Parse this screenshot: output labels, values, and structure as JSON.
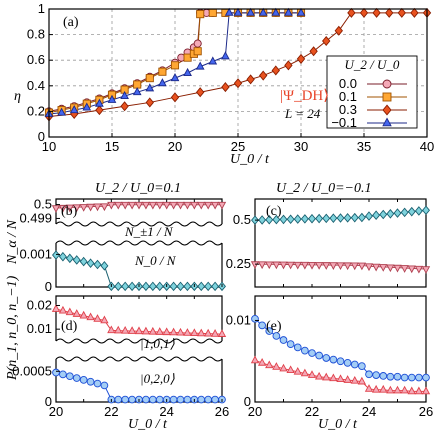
{
  "chart_data": [
    {
      "panel": "(a)",
      "type": "line",
      "xlabel": "U_0 / t",
      "ylabel": "η",
      "xlim": [
        10,
        40
      ],
      "ylim": [
        0,
        1
      ],
      "xticks": [
        10,
        15,
        20,
        25,
        30,
        35,
        40
      ],
      "yticks": [
        0,
        0.2,
        0.4,
        0.6,
        0.8,
        1
      ],
      "grid": true,
      "legend_title": "U_2 / U_0",
      "annotation_state": "|Ψ_DH⟩",
      "annotation_L": "L = 24",
      "series": [
        {
          "name": "0.0",
          "color": "#f4a9b7",
          "edge": "#7a1c2a",
          "marker": "circle",
          "x": [
            10,
            11,
            12,
            13,
            14,
            15,
            16,
            17,
            18,
            19,
            20,
            20.5,
            21,
            21.5,
            21.8,
            22,
            22.5,
            23,
            24,
            25,
            26,
            27,
            28,
            29,
            30
          ],
          "y": [
            0.2,
            0.22,
            0.24,
            0.27,
            0.3,
            0.34,
            0.38,
            0.42,
            0.47,
            0.52,
            0.58,
            0.62,
            0.66,
            0.7,
            0.73,
            0.97,
            0.97,
            0.97,
            0.97,
            0.97,
            0.97,
            0.97,
            0.97,
            0.97,
            0.97
          ]
        },
        {
          "name": "0.1",
          "color": "#ffa733",
          "edge": "#a05300",
          "marker": "square",
          "x": [
            10,
            11,
            12,
            13,
            14,
            15,
            16,
            17,
            18,
            19,
            20,
            21,
            21.5,
            21.8,
            22,
            23,
            24,
            25,
            26,
            27,
            28,
            29,
            30
          ],
          "y": [
            0.19,
            0.21,
            0.23,
            0.26,
            0.29,
            0.33,
            0.37,
            0.41,
            0.46,
            0.51,
            0.56,
            0.62,
            0.65,
            0.67,
            0.96,
            0.97,
            0.97,
            0.97,
            0.97,
            0.97,
            0.97,
            0.97,
            0.97
          ]
        },
        {
          "name": "0.3",
          "color": "#e8521f",
          "edge": "#8a1e00",
          "marker": "diamond",
          "x": [
            10,
            12,
            14,
            16,
            18,
            20,
            22,
            24,
            25,
            26,
            27,
            28,
            29,
            30,
            31,
            32,
            33,
            34,
            35,
            36,
            37,
            38,
            39,
            40
          ],
          "y": [
            0.16,
            0.18,
            0.21,
            0.24,
            0.27,
            0.31,
            0.35,
            0.39,
            0.42,
            0.45,
            0.48,
            0.52,
            0.56,
            0.61,
            0.67,
            0.75,
            0.83,
            0.97,
            0.97,
            0.97,
            0.97,
            0.97,
            0.97,
            0.97
          ]
        },
        {
          "name": "−0.1",
          "color": "#4466ee",
          "edge": "#1c2a8a",
          "marker": "triangle",
          "x": [
            10,
            11,
            12,
            13,
            14,
            15,
            16,
            17,
            18,
            19,
            20,
            21,
            22,
            23,
            24,
            24.3,
            25,
            26,
            27,
            28,
            29,
            30
          ],
          "y": [
            0.18,
            0.19,
            0.21,
            0.23,
            0.26,
            0.29,
            0.32,
            0.35,
            0.38,
            0.42,
            0.46,
            0.5,
            0.55,
            0.59,
            0.63,
            0.97,
            0.97,
            0.97,
            0.97,
            0.97,
            0.97,
            0.97
          ]
        }
      ]
    },
    {
      "panel": "(b)",
      "type": "line",
      "subtitle": "U_2 / U_0=0.1",
      "ylabel": "N_α / N",
      "xlim": [
        20,
        26
      ],
      "upper_ylim": [
        0.4986,
        0.5004
      ],
      "upper_yticks": [
        0.499,
        0.5
      ],
      "lower_ylim": [
        0,
        0.00135
      ],
      "lower_yticks": [
        0,
        0.001
      ],
      "series": [
        {
          "name": "N_±1 / N",
          "color": "#f4a9b7",
          "edge": "#b04050",
          "marker": "triangle-down",
          "x": [
            20,
            20.25,
            20.5,
            20.75,
            21,
            21.25,
            21.5,
            21.75,
            22,
            22.25,
            22.5,
            22.75,
            23,
            23.25,
            23.5,
            23.75,
            24,
            24.25,
            24.5,
            24.75,
            25,
            25.25,
            25.5,
            25.75,
            26
          ],
          "y": [
            0.49975,
            0.49977,
            0.49979,
            0.49981,
            0.49983,
            0.49985,
            0.49987,
            0.49988,
            0.49999,
            0.49999,
            0.49999,
            0.49999,
            0.49999,
            0.49999,
            0.49999,
            0.49999,
            0.49999,
            0.49999,
            0.49999,
            0.49999,
            0.49999,
            0.49999,
            0.49999,
            0.49999,
            0.49999
          ]
        },
        {
          "name": "N_0 / N",
          "color": "#7fd3dd",
          "edge": "#1a6070",
          "marker": "diamond",
          "x": [
            20,
            20.25,
            20.5,
            20.75,
            21,
            21.25,
            21.5,
            21.75,
            22,
            22.25,
            22.5,
            22.75,
            23,
            23.25,
            23.5,
            23.75,
            24,
            24.25,
            24.5,
            24.75,
            25,
            25.25,
            25.5,
            25.75,
            26
          ],
          "y": [
            0.00098,
            0.00093,
            0.00088,
            0.00083,
            0.00078,
            0.00073,
            0.00069,
            0.00065,
            2e-05,
            2e-05,
            2e-05,
            2e-05,
            2e-05,
            2e-05,
            2e-05,
            2e-05,
            2e-05,
            2e-05,
            2e-05,
            2e-05,
            2e-05,
            2e-05,
            2e-05,
            2e-05,
            2e-05
          ]
        }
      ]
    },
    {
      "panel": "(c)",
      "type": "line",
      "subtitle": "U_2 / U_0=−0.1",
      "xlim": [
        20,
        26
      ],
      "ylim": [
        0.12,
        0.62
      ],
      "yticks": [
        0.25,
        0.5
      ],
      "series": [
        {
          "name": "N_0 / N",
          "color": "#7fd3dd",
          "edge": "#1a6070",
          "marker": "diamond",
          "x": [
            20,
            20.25,
            20.5,
            20.75,
            21,
            21.25,
            21.5,
            21.75,
            22,
            22.25,
            22.5,
            22.75,
            23,
            23.25,
            23.5,
            23.75,
            24,
            24.25,
            24.5,
            24.75,
            25,
            25.25,
            25.5,
            25.75,
            26
          ],
          "y": [
            0.5,
            0.501,
            0.502,
            0.503,
            0.504,
            0.505,
            0.506,
            0.507,
            0.508,
            0.509,
            0.51,
            0.511,
            0.512,
            0.513,
            0.514,
            0.515,
            0.523,
            0.528,
            0.532,
            0.536,
            0.54,
            0.544,
            0.548,
            0.552,
            0.556
          ]
        },
        {
          "name": "N_±1 / N",
          "color": "#f4a9b7",
          "edge": "#b04050",
          "marker": "triangle-down",
          "x": [
            20,
            20.25,
            20.5,
            20.75,
            21,
            21.25,
            21.5,
            21.75,
            22,
            22.25,
            22.5,
            22.75,
            23,
            23.25,
            23.5,
            23.75,
            24,
            24.25,
            24.5,
            24.75,
            25,
            25.25,
            25.5,
            25.75,
            26
          ],
          "y": [
            0.25,
            0.2495,
            0.249,
            0.2485,
            0.248,
            0.2475,
            0.247,
            0.2465,
            0.246,
            0.2455,
            0.245,
            0.2445,
            0.244,
            0.2435,
            0.243,
            0.2425,
            0.238,
            0.236,
            0.234,
            0.232,
            0.23,
            0.228,
            0.226,
            0.224,
            0.222
          ]
        }
      ]
    },
    {
      "panel": "(d)",
      "type": "line",
      "ylabel": "P(n_1, n_0, n_−1)",
      "xlabel": "U_0 / t",
      "xlim": [
        20,
        26
      ],
      "xticks": [
        20,
        22,
        24,
        26
      ],
      "upper_ylim": [
        0.005,
        0.024
      ],
      "upper_yticks": [
        0.01,
        0.02
      ],
      "lower_ylim": [
        0,
        0.0007
      ],
      "lower_yticks": [
        0,
        0.0005
      ],
      "series": [
        {
          "name": "|1,0,1⟩",
          "color": "#f4a9b7",
          "edge": "#e0404a",
          "marker": "triangle",
          "x": [
            20,
            20.25,
            20.5,
            20.75,
            21,
            21.25,
            21.5,
            21.75,
            22,
            22.25,
            22.5,
            22.75,
            23,
            23.25,
            23.5,
            23.75,
            24,
            24.25,
            24.5,
            24.75,
            25,
            25.25,
            25.5,
            25.75,
            26
          ],
          "y": [
            0.0185,
            0.0178,
            0.0171,
            0.0164,
            0.0157,
            0.015,
            0.0143,
            0.0137,
            0.0095,
            0.0094,
            0.0093,
            0.0092,
            0.0091,
            0.009,
            0.0089,
            0.0088,
            0.0087,
            0.0086,
            0.0085,
            0.0084,
            0.0083,
            0.0082,
            0.0081,
            0.008,
            0.0079
          ]
        },
        {
          "name": "|0,2,0⟩",
          "color": "#a3cdf5",
          "edge": "#1d4fd6",
          "marker": "circle",
          "x": [
            20,
            20.25,
            20.5,
            20.75,
            21,
            21.25,
            21.5,
            21.75,
            22,
            22.25,
            22.5,
            22.75,
            23,
            23.25,
            23.5,
            23.75,
            24,
            24.25,
            24.5,
            24.75,
            25,
            25.25,
            25.5,
            25.75,
            26
          ],
          "y": [
            0.00048,
            0.00045,
            0.00042,
            0.00039,
            0.00036,
            0.00033,
            0.0003,
            0.00027,
            4e-05,
            4e-05,
            4e-05,
            4e-05,
            4e-05,
            4e-05,
            4e-05,
            4e-05,
            4e-05,
            4e-05,
            4e-05,
            4e-05,
            4e-05,
            4e-05,
            4e-05,
            4e-05,
            4e-05
          ]
        }
      ]
    },
    {
      "panel": "(e)",
      "type": "line",
      "xlabel": "U_0 / t",
      "xlim": [
        20,
        26
      ],
      "xticks": [
        20,
        22,
        24,
        26
      ],
      "ylim": [
        0,
        0.013
      ],
      "yticks": [
        0,
        0.01
      ],
      "series": [
        {
          "name": "|0,2,0⟩",
          "color": "#a3cdf5",
          "edge": "#1d4fd6",
          "marker": "circle",
          "x": [
            20,
            20.25,
            20.5,
            20.75,
            21,
            21.25,
            21.5,
            21.75,
            22,
            22.25,
            22.5,
            22.75,
            23,
            23.25,
            23.5,
            23.75,
            24,
            24.25,
            24.5,
            24.75,
            25,
            25.25,
            25.5,
            25.75,
            26
          ],
          "y": [
            0.0102,
            0.0094,
            0.0087,
            0.0081,
            0.0076,
            0.0071,
            0.0067,
            0.0063,
            0.006,
            0.0057,
            0.0054,
            0.0052,
            0.005,
            0.0048,
            0.0046,
            0.0044,
            0.0034,
            0.0033,
            0.0032,
            0.0031,
            0.0031,
            0.003,
            0.003,
            0.003,
            0.003
          ]
        },
        {
          "name": "|1,0,1⟩",
          "color": "#f4a9b7",
          "edge": "#e0404a",
          "marker": "triangle",
          "x": [
            20,
            20.25,
            20.5,
            20.75,
            21,
            21.25,
            21.5,
            21.75,
            22,
            22.25,
            22.5,
            22.75,
            23,
            23.25,
            23.5,
            23.75,
            24,
            24.25,
            24.5,
            24.75,
            25,
            25.25,
            25.5,
            25.75,
            26
          ],
          "y": [
            0.0051,
            0.0048,
            0.0045,
            0.0043,
            0.0041,
            0.0039,
            0.0037,
            0.0035,
            0.0033,
            0.0031,
            0.003,
            0.0029,
            0.0028,
            0.0027,
            0.0026,
            0.0025,
            0.0016,
            0.0015,
            0.0015,
            0.0014,
            0.0014,
            0.0014,
            0.0013,
            0.0013,
            0.0013
          ]
        }
      ]
    }
  ],
  "labels": {
    "panel_a": "(a)",
    "panel_b": "(b)",
    "panel_c": "(c)",
    "panel_d": "(d)",
    "panel_e": "(e)",
    "a_ylabel": "η",
    "a_xlabel": "U_0 / t",
    "legend_title": "U_2 / U_0",
    "legend_0": "0.0",
    "legend_1": "0.1",
    "legend_2": "0.3",
    "legend_3": "−0.1",
    "psi": "|Ψ_DH⟩",
    "L": "L = 24",
    "b_title": "U_2 / U_0=0.1",
    "c_title": "U_2 / U_0=−0.1",
    "b_ylabel": "N_α / N",
    "b_N1": "N_±1 / N",
    "b_N0": "N_0 / N",
    "d_ylabel": "P(n_1, n_0, n_−1)",
    "d_101": "|1,0,1⟩",
    "d_020": "|0,2,0⟩",
    "x_bottom": "U_0 / t"
  }
}
